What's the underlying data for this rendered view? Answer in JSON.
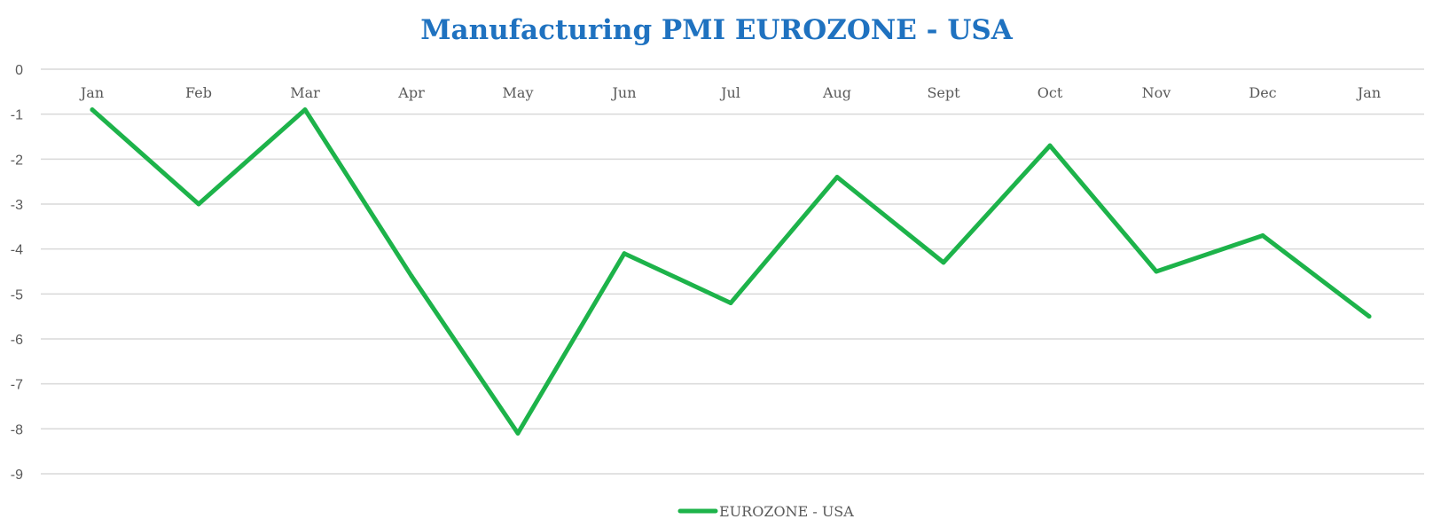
{
  "colors": {
    "title": "#1f72c0",
    "series": "#1db34a",
    "grid": "#d9d9d9",
    "text": "#595959"
  },
  "chart_data": {
    "type": "line",
    "title": "Manufacturing PMI EUROZONE - USA",
    "categories": [
      "Jan",
      "Feb",
      "Mar",
      "Apr",
      "May",
      "Jun",
      "Jul",
      "Aug",
      "Sept",
      "Oct",
      "Nov",
      "Dec",
      "Jan"
    ],
    "series": [
      {
        "name": "EUROZONE - USA",
        "values": [
          -0.9,
          -3.0,
          -0.9,
          -4.6,
          -8.1,
          -4.1,
          -5.2,
          -2.4,
          -4.3,
          -1.7,
          -4.5,
          -3.7,
          -5.5
        ]
      }
    ],
    "ylim": [
      -9,
      0
    ],
    "yticks": [
      "0",
      "-1",
      "-2",
      "-3",
      "-4",
      "-5",
      "-6",
      "-7",
      "-8",
      "-9"
    ],
    "xaxis_position": "top",
    "grid": true,
    "legend": "bottom-center",
    "xlabel": "",
    "ylabel": ""
  }
}
